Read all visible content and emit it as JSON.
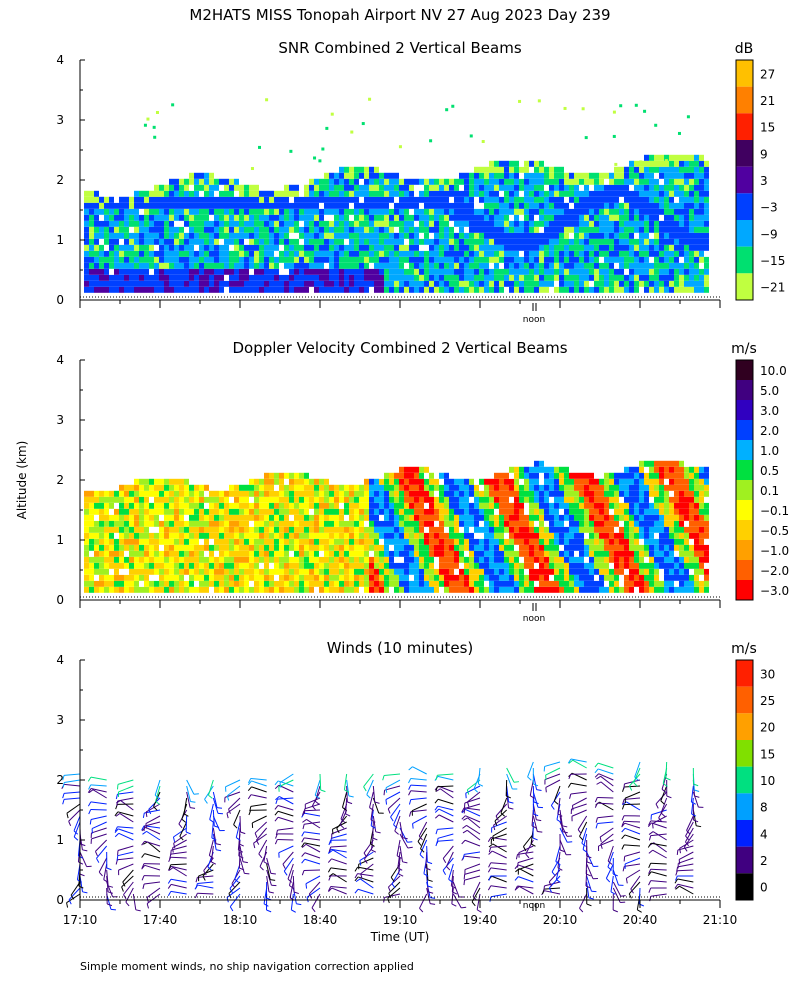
{
  "figure": {
    "title": "M2HATS MISS Tonopah Airport NV  27 Aug 2023 Day 239",
    "y_axis_label": "Altitude (km)",
    "x_axis_label": "Time (UT)",
    "footnote": "Simple moment winds, no ship navigation correction applied",
    "noon_label": "noon"
  },
  "chart_data": [
    {
      "type": "heatmap",
      "title": "SNR Combined 2 Vertical Beams",
      "colorbar_unit": "dB",
      "colorbar_labels": [
        "27",
        "21",
        "15",
        "9",
        "3",
        "−3",
        "−9",
        "−15",
        "−21"
      ],
      "colorbar_colors": [
        "#ffc000",
        "#ff8000",
        "#ff2000",
        "#400060",
        "#5000a0",
        "#0040ff",
        "#00a8ff",
        "#00e070",
        "#c0ff40"
      ],
      "y_ticks": [
        "0",
        "1",
        "2",
        "3",
        "4"
      ],
      "ylim": [
        0,
        4
      ],
      "xlim": [
        "17:10",
        "21:10"
      ],
      "grid": false
    },
    {
      "type": "heatmap",
      "title": "Doppler Velocity Combined 2 Vertical Beams",
      "colorbar_unit": "m/s",
      "colorbar_labels": [
        "10.0",
        "5.0",
        "3.0",
        "2.0",
        "1.0",
        "0.5",
        "0.1",
        "−0.1",
        "−0.5",
        "−1.0",
        "−2.0",
        "−3.0"
      ],
      "colorbar_colors": [
        "#300020",
        "#400080",
        "#3000c0",
        "#0040ff",
        "#00b0ff",
        "#00e040",
        "#a0f020",
        "#ffff00",
        "#ffd000",
        "#ffa000",
        "#ff6000",
        "#ff0000"
      ],
      "y_ticks": [
        "0",
        "1",
        "2",
        "3",
        "4"
      ],
      "ylim": [
        0,
        4
      ],
      "xlim": [
        "17:10",
        "21:10"
      ],
      "grid": false
    },
    {
      "type": "scatter",
      "title": "Winds (10 minutes)",
      "colorbar_unit": "m/s",
      "colorbar_labels": [
        "30",
        "25",
        "20",
        "15",
        "10",
        "8",
        "4",
        "2",
        "0"
      ],
      "colorbar_colors": [
        "#ff2000",
        "#ff6000",
        "#ffa000",
        "#80e000",
        "#00e080",
        "#00a0ff",
        "#0020ff",
        "#400080",
        "#000000"
      ],
      "y_ticks": [
        "0",
        "1",
        "2",
        "3",
        "4"
      ],
      "x_ticks": [
        "17:10",
        "17:40",
        "18:10",
        "18:40",
        "19:10",
        "19:40",
        "20:10",
        "20:40",
        "21:10"
      ],
      "ylim": [
        0,
        4
      ],
      "xlim": [
        "17:10",
        "21:10"
      ],
      "profile_times": [
        "17:10",
        "17:20",
        "17:30",
        "17:40",
        "17:50",
        "18:00",
        "18:10",
        "18:20",
        "18:30",
        "18:40",
        "18:50",
        "19:00",
        "19:10",
        "19:20",
        "19:30",
        "19:40",
        "19:50",
        "20:00",
        "20:10",
        "20:20",
        "20:30",
        "20:40",
        "20:50",
        "21:00"
      ],
      "profile_top_km": [
        2.2,
        2.1,
        2.1,
        2.1,
        2.1,
        2.1,
        2.1,
        2.1,
        2.15,
        2.2,
        2.2,
        2.2,
        2.2,
        2.2,
        2.2,
        2.25,
        2.3,
        2.4,
        2.4,
        2.4,
        2.3,
        2.35,
        2.4,
        2.3
      ],
      "grid": false
    }
  ]
}
